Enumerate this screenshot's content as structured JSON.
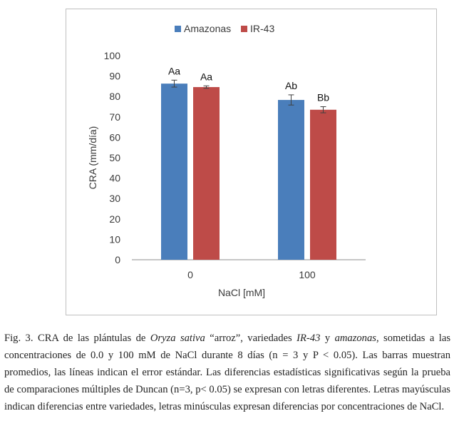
{
  "chart_data": {
    "type": "bar",
    "categories": [
      "0",
      "100"
    ],
    "series": [
      {
        "name": "Amazonas",
        "color": "#4a7ebb",
        "values": [
          86.3,
          78.3
        ],
        "errors": [
          1.7,
          2.5
        ],
        "labels": [
          "Aa",
          "Ab"
        ]
      },
      {
        "name": "IR-43",
        "color": "#be4b48",
        "values": [
          84.6,
          73.5
        ],
        "errors": [
          0.6,
          1.5
        ],
        "labels": [
          "Aa",
          "Bb"
        ]
      }
    ],
    "title": "",
    "xlabel": "NaCl [mM]",
    "ylabel": "CRA (mm/día)",
    "ylim": [
      0,
      100
    ],
    "yticks": [
      "0",
      "10",
      "20",
      "30",
      "40",
      "50",
      "60",
      "70",
      "80",
      "90",
      "100"
    ],
    "legend_position": "top-center",
    "grid": false
  },
  "caption": {
    "label": "Fig. 3.",
    "part1": " CRA de las plántulas de ",
    "species": "Oryza sativa",
    "part2": " “arroz”, variedades ",
    "variety1": "IR-43",
    "part3": " y ",
    "variety2": "amazonas",
    "part4": ", sometidas a las concentraciones de 0.0 y 100 mM de NaCl durante 8 días (n = 3 y P < 0.05). Las barras muestran promedios, las líneas indican el error estándar. Las diferencias estadísticas significativas según la prueba de comparaciones múltiples de Duncan (n=3, p< 0.05) se expresan con letras diferentes. Letras mayúsculas indican diferencias entre variedades, letras minúsculas expresan diferencias por concentraciones de NaCl."
  }
}
